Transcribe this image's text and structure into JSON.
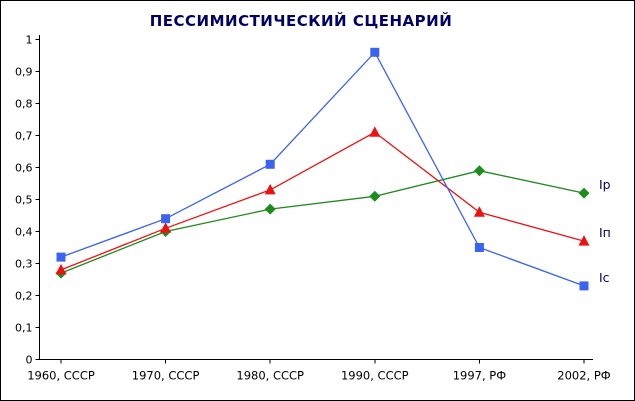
{
  "chart_data": {
    "type": "line",
    "title": "ПЕССИМИСТИЧЕСКИЙ СЦЕНАРИЙ",
    "title_color": "#000066",
    "categories": [
      "1960, СССР",
      "1970, СССР",
      "1980, СССР",
      "1990, СССР",
      "1997, РФ",
      "2002, РФ"
    ],
    "series": [
      {
        "name": "Iр",
        "label": "Iр",
        "color": "#1E8B1E",
        "marker": "diamond",
        "values": [
          0.27,
          0.4,
          0.47,
          0.51,
          0.59,
          0.52
        ]
      },
      {
        "name": "Iп",
        "label": "Iп",
        "color": "#EE1111",
        "marker": "triangle",
        "values": [
          0.28,
          0.41,
          0.53,
          0.71,
          0.46,
          0.37
        ]
      },
      {
        "name": "Iс",
        "label": "Iс",
        "color": "#3A64F0",
        "marker": "square",
        "values": [
          0.32,
          0.44,
          0.61,
          0.96,
          0.35,
          0.23
        ]
      }
    ],
    "ylim": [
      0,
      1
    ],
    "ytick_step": 0.1,
    "ytick_labels": [
      "0",
      "0,1",
      "0,2",
      "0,3",
      "0,4",
      "0,5",
      "0,6",
      "0,7",
      "0,8",
      "0,9",
      "1"
    ],
    "xlabel": "",
    "ylabel": "",
    "grid": false,
    "axis_color": "#000000",
    "tick_label_color": "#000000",
    "series_label_color": "#000066",
    "legend_position": "line-end-right"
  }
}
